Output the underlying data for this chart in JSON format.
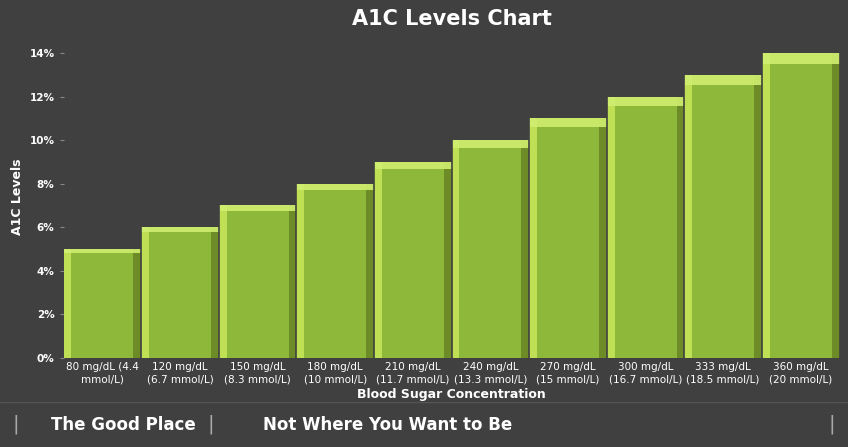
{
  "title": "A1C Levels Chart",
  "xlabel": "Blood Sugar Concentration",
  "ylabel": "A1C Levels",
  "categories": [
    "80 mg/dL (4.4\nmmol/L)",
    "120 mg/dL\n(6.7 mmol/L)",
    "150 mg/dL\n(8.3 mmol/L)",
    "180 mg/dL\n(10 mmol/L)",
    "210 mg/dL\n(11.7 mmol/L)",
    "240 mg/dL\n(13.3 mmol/L)",
    "270 mg/dL\n(15 mmol/L)",
    "300 mg/dL\n(16.7 mmol/L)",
    "333 mg/dL\n(18.5 mmol/L)",
    "360 mg/dL\n(20 mmol/L)"
  ],
  "values": [
    5,
    6,
    7,
    8,
    9,
    10,
    11,
    12,
    13,
    14
  ],
  "bar_color_main": "#8DB83A",
  "bar_color_light": "#C8E85A",
  "bar_color_dark": "#607A20",
  "bar_color_top": "#D0EE70",
  "background_color": "#404040",
  "plot_bg_color": "#404040",
  "text_color": "#FFFFFF",
  "title_fontsize": 15,
  "tick_fontsize": 7.5,
  "ylabel_fontsize": 9,
  "xlabel_fontsize": 9,
  "ylim": [
    0,
    14.8
  ],
  "yticks": [
    0,
    2,
    4,
    6,
    8,
    10,
    12,
    14
  ],
  "ytick_labels": [
    "0%",
    "2%",
    "4%",
    "6%",
    "8%",
    "10%",
    "12%",
    "14%"
  ],
  "footer_left": "The Good Place",
  "footer_right": "Not Where You Want to Be",
  "footer_bg": "#000000",
  "footer_text_color": "#FFFFFF",
  "footer_fontsize": 12
}
